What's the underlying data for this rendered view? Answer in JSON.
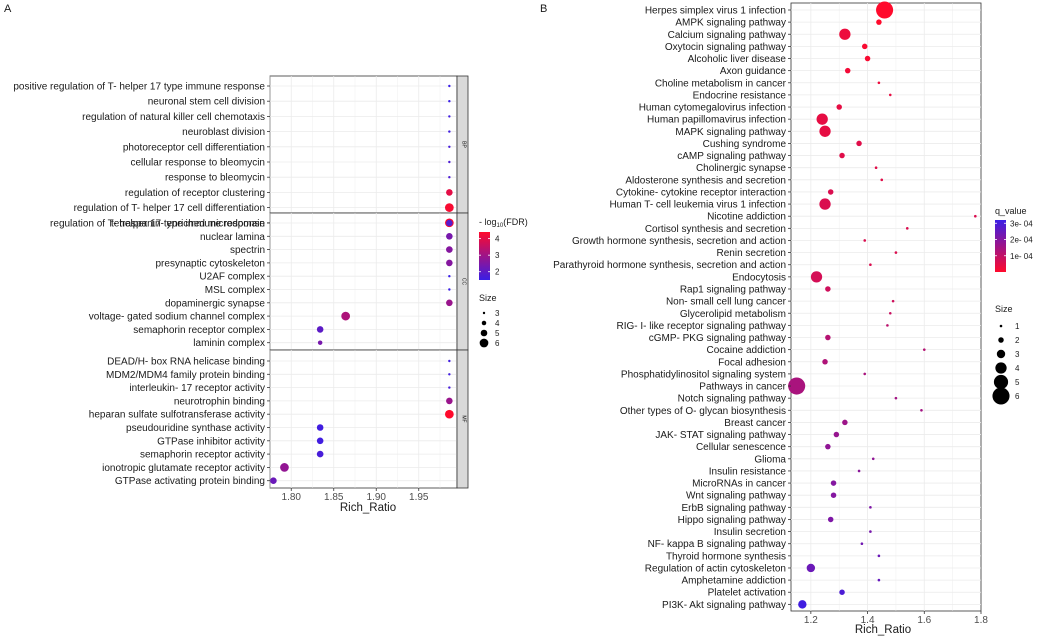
{
  "chart_data": [
    {
      "type": "scatter",
      "panel_label": "A",
      "xlabel": "Rich_Ratio",
      "xticks": [
        "1.80",
        "1.85",
        "1.90",
        "1.95"
      ],
      "xlim": [
        1.775,
        1.995
      ],
      "facets": [
        {
          "name": "BP",
          "terms": [
            {
              "term": "positive regulation of T- helper 17 type immune response",
              "rich_ratio": 1.986,
              "neg_log10_fdr": 1.5,
              "size": 3
            },
            {
              "term": "neuronal stem cell division",
              "rich_ratio": 1.986,
              "neg_log10_fdr": 1.5,
              "size": 3
            },
            {
              "term": "regulation of natural killer cell chemotaxis",
              "rich_ratio": 1.986,
              "neg_log10_fdr": 1.6,
              "size": 3
            },
            {
              "term": "neuroblast division",
              "rich_ratio": 1.986,
              "neg_log10_fdr": 1.6,
              "size": 3
            },
            {
              "term": "photoreceptor cell differentiation",
              "rich_ratio": 1.986,
              "neg_log10_fdr": 1.7,
              "size": 3
            },
            {
              "term": "cellular response to bleomycin",
              "rich_ratio": 1.986,
              "neg_log10_fdr": 1.8,
              "size": 3
            },
            {
              "term": "response to bleomycin",
              "rich_ratio": 1.986,
              "neg_log10_fdr": 1.8,
              "size": 3
            },
            {
              "term": "regulation of receptor clustering",
              "rich_ratio": 1.986,
              "neg_log10_fdr": 4.0,
              "size": 5
            },
            {
              "term": "regulation of T- helper 17 cell differentiation",
              "rich_ratio": 1.986,
              "neg_log10_fdr": 4.3,
              "size": 6
            },
            {
              "term": "regulation of T- helper 17 type immune response",
              "rich_ratio": 1.986,
              "neg_log10_fdr": 4.4,
              "size": 6
            }
          ]
        },
        {
          "name": "CC",
          "terms": [
            {
              "term": "tetraspanin- enriched microdomain",
              "rich_ratio": 1.986,
              "neg_log10_fdr": 1.9,
              "size": 5
            },
            {
              "term": "nuclear lamina",
              "rich_ratio": 1.986,
              "neg_log10_fdr": 2.4,
              "size": 5
            },
            {
              "term": "spectrin",
              "rich_ratio": 1.986,
              "neg_log10_fdr": 2.6,
              "size": 5
            },
            {
              "term": "presynaptic cytoskeleton",
              "rich_ratio": 1.986,
              "neg_log10_fdr": 2.6,
              "size": 5
            },
            {
              "term": "U2AF complex",
              "rich_ratio": 1.986,
              "neg_log10_fdr": 1.5,
              "size": 3
            },
            {
              "term": "MSL complex",
              "rich_ratio": 1.986,
              "neg_log10_fdr": 1.5,
              "size": 3
            },
            {
              "term": "dopaminergic synapse",
              "rich_ratio": 1.986,
              "neg_log10_fdr": 2.9,
              "size": 5
            },
            {
              "term": "voltage- gated sodium channel complex",
              "rich_ratio": 1.864,
              "neg_log10_fdr": 3.2,
              "size": 6
            },
            {
              "term": "semaphorin receptor complex",
              "rich_ratio": 1.834,
              "neg_log10_fdr": 2.0,
              "size": 5
            },
            {
              "term": "laminin complex",
              "rich_ratio": 1.834,
              "neg_log10_fdr": 2.4,
              "size": 4
            }
          ]
        },
        {
          "name": "MF",
          "terms": [
            {
              "term": "DEAD/H- box RNA helicase binding",
              "rich_ratio": 1.986,
              "neg_log10_fdr": 1.6,
              "size": 3
            },
            {
              "term": "MDM2/MDM4 family protein binding",
              "rich_ratio": 1.986,
              "neg_log10_fdr": 1.6,
              "size": 3
            },
            {
              "term": "interleukin- 17 receptor activity",
              "rich_ratio": 1.986,
              "neg_log10_fdr": 1.7,
              "size": 3
            },
            {
              "term": "neurotrophin binding",
              "rich_ratio": 1.986,
              "neg_log10_fdr": 2.9,
              "size": 5
            },
            {
              "term": "heparan sulfate sulfotransferase activity",
              "rich_ratio": 1.986,
              "neg_log10_fdr": 4.4,
              "size": 6
            },
            {
              "term": "pseudouridine synthase activity",
              "rich_ratio": 1.834,
              "neg_log10_fdr": 1.6,
              "size": 5
            },
            {
              "term": "GTPase inhibitor activity",
              "rich_ratio": 1.834,
              "neg_log10_fdr": 1.6,
              "size": 5
            },
            {
              "term": "semaphorin receptor activity",
              "rich_ratio": 1.834,
              "neg_log10_fdr": 1.7,
              "size": 5
            },
            {
              "term": "ionotropic glutamate receptor activity",
              "rich_ratio": 1.792,
              "neg_log10_fdr": 2.8,
              "size": 6
            },
            {
              "term": "GTPase activating protein binding",
              "rich_ratio": 1.779,
              "neg_log10_fdr": 2.2,
              "size": 5
            }
          ]
        }
      ],
      "color_legend": {
        "title_prefix": "- log",
        "title_sub": "10",
        "title_suffix": "(FDR)",
        "ticks": [
          2,
          3,
          4
        ],
        "range": [
          1.5,
          4.4
        ],
        "low_color": "#3a1ee6",
        "high_color": "#ff0a2c"
      },
      "size_legend": {
        "title": "Size",
        "values": [
          3,
          4,
          5,
          6
        ]
      }
    },
    {
      "type": "scatter",
      "panel_label": "B",
      "xlabel": "Rich_Ratio",
      "xticks": [
        "1.2",
        "1.4",
        "1.6",
        "1.8"
      ],
      "xlim": [
        1.13,
        1.8
      ],
      "terms": [
        {
          "term": "Herpes simplex virus 1 infection",
          "rich_ratio": 1.46,
          "q_value": 0.0,
          "size": 6
        },
        {
          "term": "AMPK signaling pathway",
          "rich_ratio": 1.44,
          "q_value": 0.0,
          "size": 2
        },
        {
          "term": "Calcium signaling pathway",
          "rich_ratio": 1.32,
          "q_value": 3e-05,
          "size": 4
        },
        {
          "term": "Oxytocin signaling pathway",
          "rich_ratio": 1.39,
          "q_value": 1e-05,
          "size": 2
        },
        {
          "term": "Alcoholic liver disease",
          "rich_ratio": 1.4,
          "q_value": 1e-05,
          "size": 2
        },
        {
          "term": "Axon guidance",
          "rich_ratio": 1.33,
          "q_value": 2e-05,
          "size": 2
        },
        {
          "term": "Choline metabolism in cancer",
          "rich_ratio": 1.44,
          "q_value": 3e-05,
          "size": 1
        },
        {
          "term": "Endocrine resistance",
          "rich_ratio": 1.48,
          "q_value": 4e-05,
          "size": 1
        },
        {
          "term": "Human cytomegalovirus infection",
          "rich_ratio": 1.3,
          "q_value": 4e-05,
          "size": 2
        },
        {
          "term": "Human papillomavirus infection",
          "rich_ratio": 1.24,
          "q_value": 4e-05,
          "size": 4
        },
        {
          "term": "MAPK signaling pathway",
          "rich_ratio": 1.25,
          "q_value": 4e-05,
          "size": 4
        },
        {
          "term": "Cushing syndrome",
          "rich_ratio": 1.37,
          "q_value": 5e-05,
          "size": 2
        },
        {
          "term": "cAMP signaling pathway",
          "rich_ratio": 1.31,
          "q_value": 5e-05,
          "size": 2
        },
        {
          "term": "Cholinergic synapse",
          "rich_ratio": 1.43,
          "q_value": 5e-05,
          "size": 1
        },
        {
          "term": "Aldosterone synthesis and secretion",
          "rich_ratio": 1.45,
          "q_value": 5e-05,
          "size": 1
        },
        {
          "term": "Cytokine- cytokine receptor interaction",
          "rich_ratio": 1.27,
          "q_value": 6e-05,
          "size": 2
        },
        {
          "term": "Human T- cell leukemia virus 1 infection",
          "rich_ratio": 1.25,
          "q_value": 6e-05,
          "size": 4
        },
        {
          "term": "Nicotine addiction",
          "rich_ratio": 1.78,
          "q_value": 6e-05,
          "size": 1
        },
        {
          "term": "Cortisol synthesis and secretion",
          "rich_ratio": 1.54,
          "q_value": 6e-05,
          "size": 1
        },
        {
          "term": "Growth hormone synthesis, secretion and action",
          "rich_ratio": 1.39,
          "q_value": 6e-05,
          "size": 1
        },
        {
          "term": "Renin secretion",
          "rich_ratio": 1.5,
          "q_value": 6e-05,
          "size": 1
        },
        {
          "term": "Parathyroid hormone synthesis, secretion and action",
          "rich_ratio": 1.41,
          "q_value": 6e-05,
          "size": 1
        },
        {
          "term": "Endocytosis",
          "rich_ratio": 1.22,
          "q_value": 7e-05,
          "size": 4
        },
        {
          "term": "Rap1 signaling pathway",
          "rich_ratio": 1.26,
          "q_value": 8e-05,
          "size": 2
        },
        {
          "term": "Non- small cell lung cancer",
          "rich_ratio": 1.49,
          "q_value": 8e-05,
          "size": 1
        },
        {
          "term": "Glycerolipid metabolism",
          "rich_ratio": 1.48,
          "q_value": 9e-05,
          "size": 1
        },
        {
          "term": "RIG- I- like receptor signaling pathway",
          "rich_ratio": 1.47,
          "q_value": 0.00011,
          "size": 1
        },
        {
          "term": "cGMP- PKG signaling pathway",
          "rich_ratio": 1.26,
          "q_value": 0.00012,
          "size": 2
        },
        {
          "term": "Cocaine addiction",
          "rich_ratio": 1.6,
          "q_value": 0.00012,
          "size": 1
        },
        {
          "term": "Focal adhesion",
          "rich_ratio": 1.25,
          "q_value": 0.00013,
          "size": 2
        },
        {
          "term": "Phosphatidylinositol signaling system",
          "rich_ratio": 1.39,
          "q_value": 0.00014,
          "size": 1
        },
        {
          "term": "Pathways in cancer",
          "rich_ratio": 1.15,
          "q_value": 0.00014,
          "size": 6
        },
        {
          "term": "Notch signaling pathway",
          "rich_ratio": 1.5,
          "q_value": 0.00015,
          "size": 1
        },
        {
          "term": "Other types of O- glycan biosynthesis",
          "rich_ratio": 1.59,
          "q_value": 0.00015,
          "size": 1
        },
        {
          "term": "Breast cancer",
          "rich_ratio": 1.32,
          "q_value": 0.00016,
          "size": 2
        },
        {
          "term": "JAK- STAT signaling pathway",
          "rich_ratio": 1.29,
          "q_value": 0.00017,
          "size": 2
        },
        {
          "term": "Cellular senescence",
          "rich_ratio": 1.26,
          "q_value": 0.00018,
          "size": 2
        },
        {
          "term": "Glioma",
          "rich_ratio": 1.42,
          "q_value": 0.00018,
          "size": 1
        },
        {
          "term": "Insulin resistance",
          "rich_ratio": 1.37,
          "q_value": 0.00019,
          "size": 1
        },
        {
          "term": "MicroRNAs in cancer",
          "rich_ratio": 1.28,
          "q_value": 0.0002,
          "size": 2
        },
        {
          "term": "Wnt signaling pathway",
          "rich_ratio": 1.28,
          "q_value": 0.0002,
          "size": 2
        },
        {
          "term": "ErbB signaling pathway",
          "rich_ratio": 1.41,
          "q_value": 0.00021,
          "size": 1
        },
        {
          "term": "Hippo signaling pathway",
          "rich_ratio": 1.27,
          "q_value": 0.00021,
          "size": 2
        },
        {
          "term": "Insulin secretion",
          "rich_ratio": 1.41,
          "q_value": 0.00022,
          "size": 1
        },
        {
          "term": "NF- kappa B signaling pathway",
          "rich_ratio": 1.38,
          "q_value": 0.00023,
          "size": 1
        },
        {
          "term": "Thyroid hormone synthesis",
          "rich_ratio": 1.44,
          "q_value": 0.00024,
          "size": 1
        },
        {
          "term": "Regulation of actin cytoskeleton",
          "rich_ratio": 1.2,
          "q_value": 0.00024,
          "size": 3
        },
        {
          "term": "Amphetamine addiction",
          "rich_ratio": 1.44,
          "q_value": 0.00025,
          "size": 1
        },
        {
          "term": "Platelet activation",
          "rich_ratio": 1.31,
          "q_value": 0.00029,
          "size": 2
        },
        {
          "term": "PI3K- Akt signaling pathway",
          "rich_ratio": 1.17,
          "q_value": 0.00031,
          "size": 3
        }
      ],
      "color_legend": {
        "title": "q_value",
        "labels": [
          "3e- 04",
          "2e- 04",
          "1e- 04"
        ],
        "ticks": [
          0.0003,
          0.0002,
          0.0001
        ],
        "range": [
          0.0,
          0.00032
        ],
        "low_color": "#ff0a2c",
        "high_color": "#3a1ee6"
      },
      "size_legend": {
        "title": "Size",
        "values": [
          1,
          2,
          3,
          4,
          5,
          6
        ]
      }
    }
  ]
}
